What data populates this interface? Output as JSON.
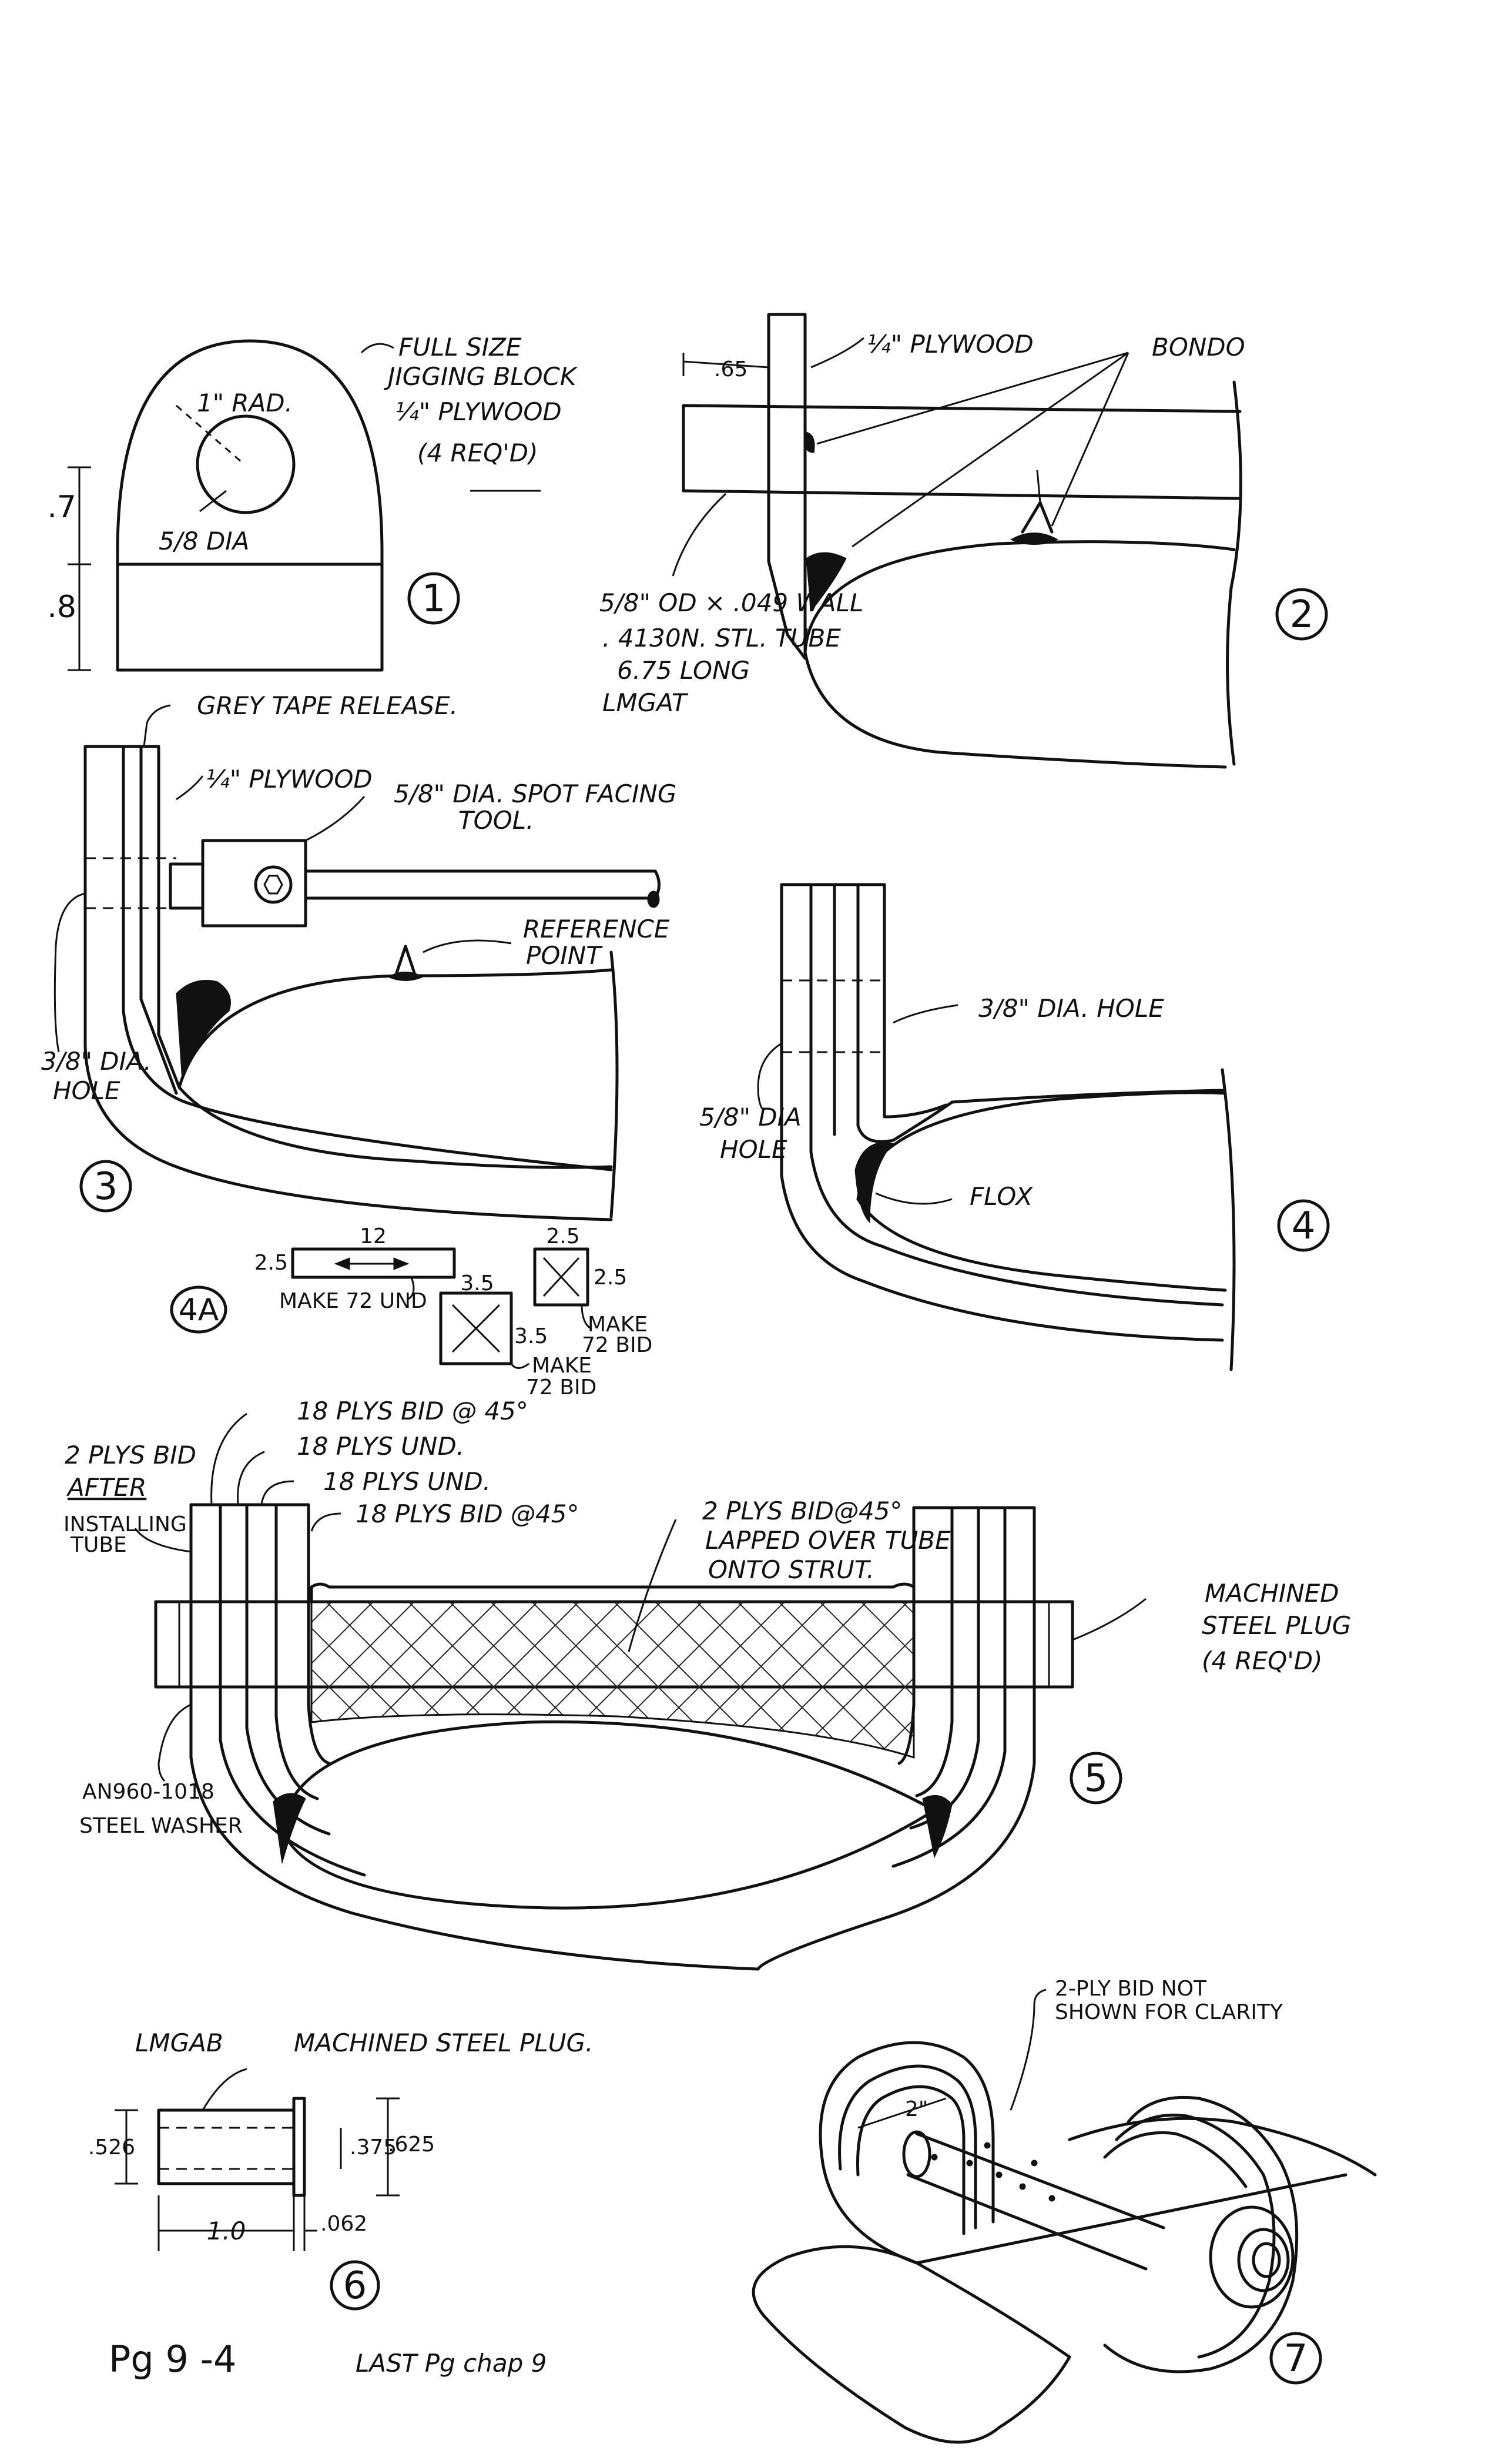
{
  "figures": {
    "fig1": {
      "number": "1",
      "title_line1": "FULL SIZE",
      "title_line2": "JIGGING BLOCK",
      "material": "¼\" PLYWOOD",
      "qty": "(4 REQ'D)",
      "radius": "1\" RAD.",
      "hole": "5/8 DIA",
      "dim_upper": ".7",
      "dim_lower": ".8"
    },
    "fig2": {
      "number": "2",
      "plywood": "¼\" PLYWOOD",
      "bondo": "BONDO",
      "offset": ".65",
      "tube_line1": "5/8\" OD × .049 WALL",
      "tube_line2": ". 4130N. STL. TUBE",
      "tube_line3": "6.75 LONG",
      "tube_line4": "LMGAT"
    },
    "fig3": {
      "number": "3",
      "release": "GREY TAPE RELEASE.",
      "plywood": "¼\" PLYWOOD",
      "tool_line1": "5/8\" DIA. SPOT FACING",
      "tool_line2": "TOOL.",
      "ref_line1": "REFERENCE",
      "ref_line2": "POINT",
      "hole_line1": "3/8\" DIA.",
      "hole_line2": "HOLE"
    },
    "fig4": {
      "number": "4",
      "hole_small": "3/8\" DIA. HOLE",
      "hole_large_line1": "5/8\" DIA",
      "hole_large_line2": "HOLE",
      "flox": "FLOX"
    },
    "fig4a": {
      "number": "4A",
      "strip_length": "12",
      "strip_width": "2.5",
      "strip_note": "MAKE 72 UND",
      "sq1_top": "2.5",
      "sq1_side": "2.5",
      "sq1_note_line1": "MAKE",
      "sq1_note_line2": "72 BID",
      "sq2_top": "3.5",
      "sq2_side": "3.5",
      "sq2_note_line1": "MAKE",
      "sq2_note_line2": "72 BID"
    },
    "fig5": {
      "number": "5",
      "layer1": "18 PLYS BID @ 45°",
      "layer2": "18 PLYS UND.",
      "layer3": "18 PLYS UND.",
      "layer4": "18 PLYS BID @45°",
      "after_line1": "2 PLYS BID",
      "after_line2": "AFTER",
      "after_line3": "INSTALLING",
      "after_line4": "TUBE",
      "lap_line1": "2 PLYS BID@45°",
      "lap_line2": "LAPPED OVER TUBE",
      "lap_line3": "ONTO STRUT.",
      "plug_line1": "MACHINED",
      "plug_line2": "STEEL PLUG",
      "plug_line3": "(4 REQ'D)",
      "washer_line1": "AN960-1018",
      "washer_line2": "STEEL WASHER"
    },
    "fig6": {
      "number": "6",
      "part": "LMGAB",
      "desc": "MACHINED STEEL PLUG.",
      "od": ".526",
      "id": ".375",
      "flange": ".625",
      "length": "1.0",
      "flange_thk": ".062"
    },
    "fig7": {
      "number": "7",
      "note_line1": "2-PLY BID NOT",
      "note_line2": "SHOWN FOR CLARITY",
      "dim": "2\""
    }
  },
  "footer": {
    "page_label": "Pg  9 -4",
    "note": "LAST Pg  chap 9"
  }
}
